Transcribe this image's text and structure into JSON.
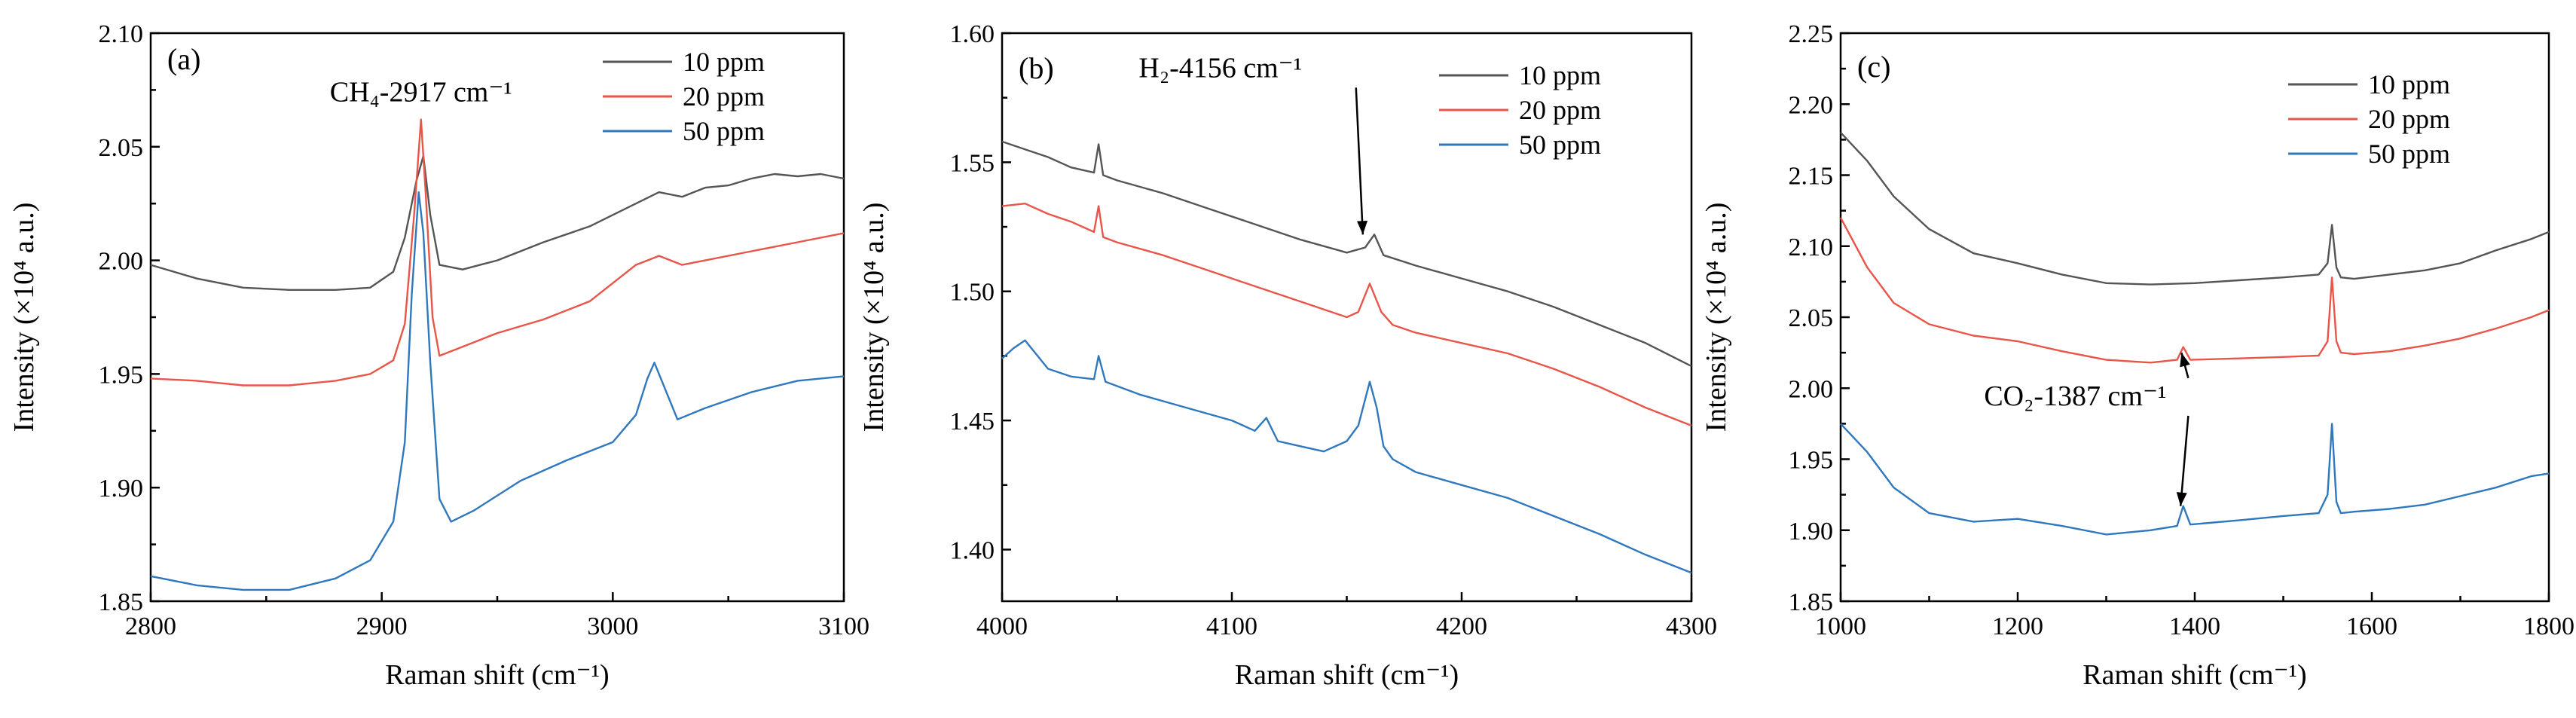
{
  "chart_data": [
    {
      "type": "line",
      "panel_label": "(a)",
      "xlabel": "Raman shift (cm⁻¹)",
      "ylabel": "Intensity (×10⁴ a.u.)",
      "xlim": [
        2800,
        3100
      ],
      "ylim": [
        1.85,
        2.1
      ],
      "xticks": [
        2800,
        2900,
        3000,
        3100
      ],
      "yticks": [
        1.85,
        1.9,
        1.95,
        2.0,
        2.05,
        2.1
      ],
      "legend": [
        "10 ppm",
        "20 ppm",
        "50 ppm"
      ],
      "annotation": {
        "text": "CH₄-2917 cm⁻¹",
        "x": 2917,
        "y": 2.07
      },
      "series": [
        {
          "name": "10 ppm",
          "color": "#555555",
          "x": [
            2800,
            2820,
            2840,
            2860,
            2880,
            2895,
            2905,
            2910,
            2915,
            2918,
            2921,
            2925,
            2935,
            2950,
            2970,
            2990,
            3000,
            3010,
            3020,
            3030,
            3040,
            3050,
            3060,
            3070,
            3080,
            3090,
            3100
          ],
          "y": [
            1.998,
            1.992,
            1.988,
            1.987,
            1.987,
            1.988,
            1.995,
            2.01,
            2.035,
            2.046,
            2.02,
            1.998,
            1.996,
            2.0,
            2.008,
            2.015,
            2.02,
            2.025,
            2.03,
            2.028,
            2.032,
            2.033,
            2.036,
            2.038,
            2.037,
            2.038,
            2.036
          ]
        },
        {
          "name": "20 ppm",
          "color": "#e8564a",
          "x": [
            2800,
            2820,
            2840,
            2860,
            2880,
            2895,
            2905,
            2910,
            2914,
            2917,
            2919,
            2922,
            2925,
            2935,
            2950,
            2970,
            2990,
            3000,
            3010,
            3020,
            3030,
            3040,
            3060,
            3080,
            3100
          ],
          "y": [
            1.948,
            1.947,
            1.945,
            1.945,
            1.947,
            1.95,
            1.956,
            1.972,
            2.02,
            2.062,
            2.03,
            1.975,
            1.958,
            1.962,
            1.968,
            1.974,
            1.982,
            1.99,
            1.998,
            2.002,
            1.998,
            2.0,
            2.004,
            2.008,
            2.012
          ]
        },
        {
          "name": "50 ppm",
          "color": "#2f78be",
          "x": [
            2800,
            2820,
            2840,
            2860,
            2880,
            2895,
            2905,
            2910,
            2913,
            2916,
            2918,
            2921,
            2925,
            2930,
            2940,
            2960,
            2980,
            3000,
            3010,
            3015,
            3018,
            3022,
            3028,
            3040,
            3060,
            3080,
            3100
          ],
          "y": [
            1.861,
            1.857,
            1.855,
            1.855,
            1.86,
            1.868,
            1.885,
            1.92,
            1.985,
            2.03,
            2.012,
            1.955,
            1.895,
            1.885,
            1.89,
            1.903,
            1.912,
            1.92,
            1.932,
            1.948,
            1.955,
            1.945,
            1.93,
            1.935,
            1.942,
            1.947,
            1.949
          ]
        }
      ]
    },
    {
      "type": "line",
      "panel_label": "(b)",
      "xlabel": "Raman shift (cm⁻¹)",
      "ylabel": "Intensity (×10⁴ a.u.)",
      "xlim": [
        4000,
        4300
      ],
      "ylim": [
        1.38,
        1.6
      ],
      "xticks": [
        4000,
        4100,
        4200,
        4300
      ],
      "yticks": [
        1.4,
        1.45,
        1.5,
        1.55,
        1.6
      ],
      "legend": [
        "10 ppm",
        "20 ppm",
        "50 ppm"
      ],
      "annotation": {
        "text": "H₂-4156 cm⁻¹",
        "x": 4095,
        "y": 1.583,
        "arrow_to": [
          4157,
          1.522
        ]
      },
      "series": [
        {
          "name": "10 ppm",
          "color": "#555555",
          "x": [
            4000,
            4010,
            4020,
            4030,
            4040,
            4042,
            4044,
            4050,
            4070,
            4090,
            4110,
            4130,
            4150,
            4158,
            4162,
            4166,
            4180,
            4200,
            4220,
            4240,
            4260,
            4280,
            4300
          ],
          "y": [
            1.558,
            1.555,
            1.552,
            1.548,
            1.546,
            1.557,
            1.545,
            1.543,
            1.538,
            1.532,
            1.526,
            1.52,
            1.515,
            1.517,
            1.522,
            1.514,
            1.51,
            1.505,
            1.5,
            1.494,
            1.487,
            1.48,
            1.471
          ]
        },
        {
          "name": "20 ppm",
          "color": "#e8564a",
          "x": [
            4000,
            4010,
            4020,
            4030,
            4040,
            4042,
            4044,
            4050,
            4070,
            4090,
            4110,
            4130,
            4150,
            4155,
            4160,
            4165,
            4170,
            4180,
            4200,
            4220,
            4240,
            4260,
            4280,
            4300
          ],
          "y": [
            1.533,
            1.534,
            1.53,
            1.527,
            1.523,
            1.533,
            1.521,
            1.519,
            1.514,
            1.508,
            1.502,
            1.496,
            1.49,
            1.492,
            1.503,
            1.492,
            1.487,
            1.484,
            1.48,
            1.476,
            1.47,
            1.463,
            1.455,
            1.448
          ]
        },
        {
          "name": "50 ppm",
          "color": "#2f78be",
          "x": [
            4000,
            4005,
            4010,
            4020,
            4030,
            4040,
            4042,
            4045,
            4060,
            4080,
            4100,
            4110,
            4115,
            4120,
            4130,
            4140,
            4150,
            4155,
            4160,
            4163,
            4166,
            4170,
            4180,
            4200,
            4220,
            4240,
            4260,
            4280,
            4300
          ],
          "y": [
            1.474,
            1.478,
            1.481,
            1.47,
            1.467,
            1.466,
            1.475,
            1.465,
            1.46,
            1.455,
            1.45,
            1.446,
            1.451,
            1.442,
            1.44,
            1.438,
            1.442,
            1.448,
            1.465,
            1.455,
            1.44,
            1.435,
            1.43,
            1.425,
            1.42,
            1.413,
            1.406,
            1.398,
            1.391
          ]
        }
      ]
    },
    {
      "type": "line",
      "panel_label": "(c)",
      "xlabel": "Raman shift (cm⁻¹)",
      "ylabel": "Intensity (×10⁴ a.u.)",
      "xlim": [
        1000,
        1800
      ],
      "ylim": [
        1.85,
        2.25
      ],
      "xticks": [
        1000,
        1200,
        1400,
        1600,
        1800
      ],
      "yticks": [
        1.85,
        1.9,
        1.95,
        2.0,
        2.05,
        2.1,
        2.15,
        2.2,
        2.25
      ],
      "legend": [
        "10 ppm",
        "20 ppm",
        "50 ppm"
      ],
      "annotation": {
        "text": "CO₂-1387 cm⁻¹",
        "x": 1265,
        "y": 1.988,
        "arrow_to": [
          [
            1385,
            2.025
          ],
          [
            1384,
            1.917
          ]
        ]
      },
      "series": [
        {
          "name": "10 ppm",
          "color": "#555555",
          "x": [
            1000,
            1030,
            1060,
            1100,
            1150,
            1200,
            1250,
            1300,
            1350,
            1400,
            1450,
            1500,
            1540,
            1550,
            1555,
            1560,
            1565,
            1580,
            1620,
            1660,
            1700,
            1740,
            1780,
            1800
          ],
          "y": [
            2.18,
            2.16,
            2.135,
            2.112,
            2.095,
            2.088,
            2.08,
            2.074,
            2.073,
            2.074,
            2.076,
            2.078,
            2.08,
            2.088,
            2.115,
            2.085,
            2.078,
            2.077,
            2.08,
            2.083,
            2.088,
            2.097,
            2.105,
            2.11
          ]
        },
        {
          "name": "20 ppm",
          "color": "#e8564a",
          "x": [
            1000,
            1030,
            1060,
            1100,
            1150,
            1200,
            1250,
            1300,
            1350,
            1380,
            1387,
            1395,
            1450,
            1500,
            1540,
            1550,
            1555,
            1560,
            1565,
            1580,
            1620,
            1660,
            1700,
            1740,
            1780,
            1800
          ],
          "y": [
            2.12,
            2.085,
            2.06,
            2.045,
            2.037,
            2.033,
            2.026,
            2.02,
            2.018,
            2.02,
            2.029,
            2.02,
            2.021,
            2.022,
            2.023,
            2.033,
            2.078,
            2.033,
            2.025,
            2.024,
            2.026,
            2.03,
            2.035,
            2.042,
            2.05,
            2.055
          ]
        },
        {
          "name": "50 ppm",
          "color": "#2f78be",
          "x": [
            1000,
            1030,
            1060,
            1100,
            1150,
            1200,
            1250,
            1300,
            1350,
            1380,
            1387,
            1395,
            1450,
            1500,
            1540,
            1550,
            1555,
            1560,
            1565,
            1580,
            1620,
            1660,
            1700,
            1740,
            1780,
            1800
          ],
          "y": [
            1.975,
            1.955,
            1.93,
            1.912,
            1.906,
            1.908,
            1.903,
            1.897,
            1.9,
            1.903,
            1.917,
            1.904,
            1.907,
            1.91,
            1.912,
            1.925,
            1.975,
            1.92,
            1.912,
            1.913,
            1.915,
            1.918,
            1.924,
            1.93,
            1.938,
            1.94
          ]
        }
      ]
    }
  ]
}
